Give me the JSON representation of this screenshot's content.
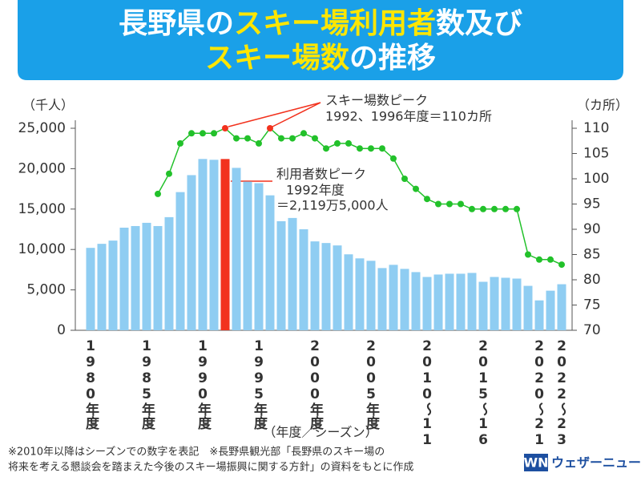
{
  "chart_data": {
    "type": "bar",
    "title": [
      [
        "長野県の",
        "スキー場利用者",
        "数及び"
      ],
      [
        "スキー場数",
        "の推移"
      ]
    ],
    "ylabel": "（千人）",
    "y2label": "（カ所）",
    "xlabel": "（年度／シーズン）",
    "categories": [
      "1980年度",
      null,
      null,
      null,
      null,
      "1985年度",
      null,
      null,
      null,
      null,
      "1990年度",
      null,
      null,
      null,
      null,
      "1995年度",
      null,
      null,
      null,
      null,
      "2000年度",
      null,
      null,
      null,
      null,
      "2005年度",
      null,
      null,
      null,
      null,
      "2010～11",
      null,
      null,
      null,
      null,
      "2015～16",
      null,
      null,
      null,
      null,
      "2020～21",
      null,
      "2022～23"
    ],
    "series": [
      {
        "name": "スキー場利用者数",
        "color": "#8fcdf2",
        "highlight_color": "#f2321e",
        "highlight_indices": [
          12
        ],
        "values": [
          10200,
          10700,
          11100,
          12700,
          12900,
          13300,
          12900,
          14000,
          17100,
          19200,
          21200,
          21100,
          21195,
          20100,
          18400,
          18200,
          16700,
          13500,
          13900,
          12500,
          11000,
          10800,
          10500,
          9400,
          8900,
          8600,
          7700,
          8100,
          7600,
          7200,
          6600,
          6900,
          7000,
          7000,
          7100,
          6000,
          6600,
          6500,
          6400,
          5500,
          3700,
          4900,
          5700
        ]
      },
      {
        "name": "スキー場数",
        "color": "#22c12a",
        "highlight_color": "#f2321e",
        "highlight_indices": [
          12,
          16
        ],
        "axis": "y2",
        "values": [
          null,
          null,
          null,
          null,
          null,
          null,
          97,
          101,
          107,
          109,
          109,
          109,
          110,
          108,
          108,
          107,
          110,
          108,
          108,
          109,
          108,
          106,
          107,
          107,
          106,
          106,
          106,
          104,
          100,
          98,
          96,
          95,
          95,
          95,
          94,
          94,
          94,
          94,
          94,
          85,
          84,
          84,
          83
        ]
      }
    ],
    "ylim": [
      0,
      25000
    ],
    "yticks": [
      0,
      {
        "value": 5000,
        "label": "5,000"
      },
      {
        "value": 10000,
        "label": "10,000"
      },
      {
        "value": 15000,
        "label": "15,000"
      },
      {
        "value": 20000,
        "label": "20,000"
      },
      {
        "value": 25000,
        "label": "25,000"
      }
    ],
    "y2lim": [
      70,
      110
    ],
    "y2ticks": [
      70,
      75,
      80,
      85,
      90,
      95,
      100,
      105,
      110
    ],
    "annotations": [
      "スキー場数ピーク",
      "1992、1996年度＝110カ所",
      "利用者数ピーク",
      "1992年度",
      "＝2,119万5,000人"
    ],
    "footnotes": [
      "※2010年以降はシーズンでの数字を表記　※長野県観光部「長野県のスキー場の",
      "将来を考える懇談会を踏まえた今後のスキー場振興に関する方針」の資料をもとに作成"
    ],
    "logo": [
      "WN",
      "ウェザーニュース"
    ]
  }
}
